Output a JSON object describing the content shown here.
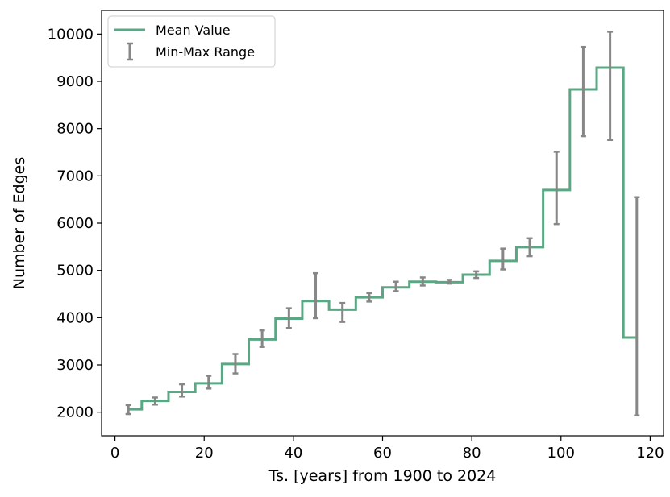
{
  "chart_data": {
    "type": "line",
    "style": "step",
    "xlabel": "Ts. [years] from 1900 to 2024",
    "ylabel": "Number of Edges",
    "xlim": [
      -3,
      123
    ],
    "ylim": [
      1500,
      10500
    ],
    "xticks": [
      0,
      20,
      40,
      60,
      80,
      100,
      120
    ],
    "yticks": [
      2000,
      3000,
      4000,
      5000,
      6000,
      7000,
      8000,
      9000,
      10000
    ],
    "legend_position": "top-left",
    "colors": {
      "mean": "#5aa883",
      "range": "#878787"
    },
    "series": [
      {
        "name": "Mean Value",
        "x": [
          3,
          9,
          15,
          21,
          27,
          33,
          39,
          45,
          51,
          57,
          63,
          69,
          75,
          81,
          87,
          93,
          99,
          105,
          111,
          117
        ],
        "mean": [
          2060,
          2240,
          2430,
          2610,
          3020,
          3540,
          3980,
          4350,
          4170,
          4430,
          4640,
          4760,
          4750,
          4910,
          5200,
          5490,
          6700,
          8830,
          9290,
          3580
        ]
      },
      {
        "name": "Min-Max Range",
        "min": [
          1960,
          2160,
          2330,
          2500,
          2820,
          3380,
          3780,
          3990,
          3910,
          4340,
          4560,
          4680,
          4720,
          4840,
          5020,
          5300,
          5980,
          7840,
          7760,
          1930
        ],
        "max": [
          2150,
          2310,
          2590,
          2770,
          3230,
          3730,
          4200,
          4940,
          4310,
          4520,
          4760,
          4850,
          4800,
          4980,
          5460,
          5680,
          7510,
          9730,
          10050,
          6550
        ]
      }
    ]
  }
}
